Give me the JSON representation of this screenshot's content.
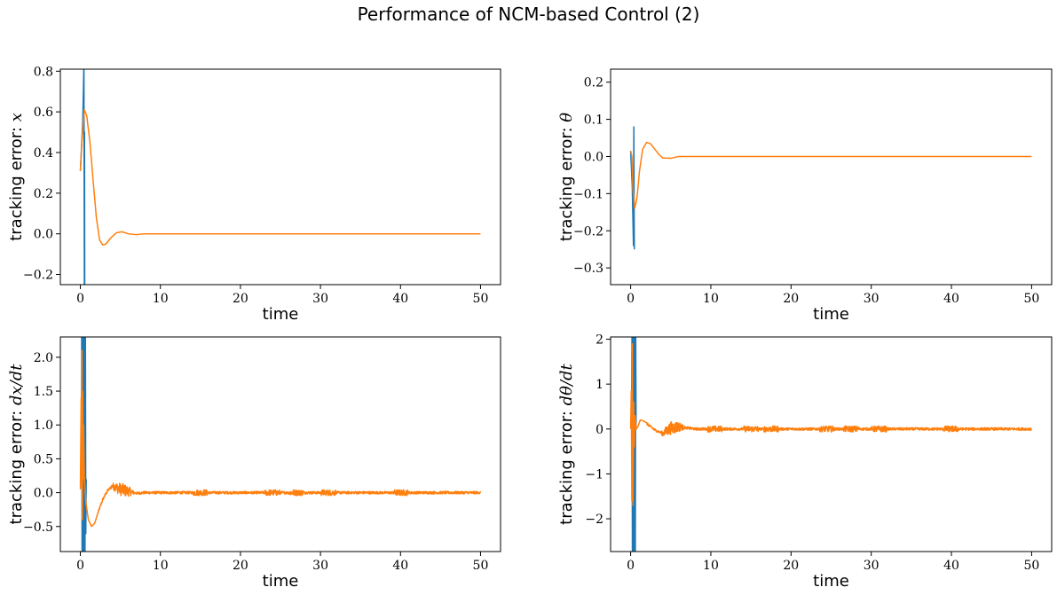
{
  "figure": {
    "title": "Performance of NCM-based Control (2)"
  },
  "colors": {
    "series_blue": "#1f77b4",
    "series_orange": "#ff7f0e"
  },
  "chart_data": [
    {
      "type": "line",
      "xlabel": "time",
      "ylabel_prefix": "tracking error: ",
      "ylabel_math": "x",
      "xlim": [
        -2.5,
        52.5
      ],
      "ylim": [
        -0.25,
        0.81
      ],
      "xticks": [
        0,
        10,
        20,
        30,
        40,
        50
      ],
      "yticks": [
        -0.2,
        0.0,
        0.2,
        0.4,
        0.6,
        0.8
      ],
      "ytick_labels": [
        "−0.2",
        "0.0",
        "0.2",
        "0.4",
        "0.6",
        "0.8"
      ],
      "series": [
        {
          "color": "#1f77b4",
          "x": [
            0.0,
            0.3,
            0.45,
            0.5,
            0.52,
            0.55
          ],
          "y": [
            0.31,
            0.55,
            0.85,
            -0.3,
            0.5,
            -0.3
          ]
        },
        {
          "color": "#ff7f0e",
          "x": [
            0.0,
            0.2,
            0.5,
            0.8,
            1.2,
            1.6,
            2.0,
            2.4,
            2.8,
            3.2,
            3.8,
            4.5,
            5.2,
            6.0,
            7.0,
            8.0,
            10,
            20,
            30,
            40,
            50
          ],
          "y": [
            0.31,
            0.45,
            0.61,
            0.58,
            0.45,
            0.26,
            0.08,
            -0.03,
            -0.055,
            -0.05,
            -0.02,
            0.005,
            0.01,
            0.0,
            -0.004,
            0.0,
            0.0,
            0.0,
            0.0,
            0.0,
            0.0
          ]
        }
      ]
    },
    {
      "type": "line",
      "xlabel": "time",
      "ylabel_prefix": "tracking error: ",
      "ylabel_math": "θ",
      "xlim": [
        -2.5,
        52.5
      ],
      "ylim": [
        -0.345,
        0.235
      ],
      "xticks": [
        0,
        10,
        20,
        30,
        40,
        50
      ],
      "yticks": [
        -0.3,
        -0.2,
        -0.1,
        0.0,
        0.1,
        0.2
      ],
      "ytick_labels": [
        "−0.3",
        "−0.2",
        "−0.1",
        "0.0",
        "0.1",
        "0.2"
      ],
      "series": [
        {
          "color": "#1f77b4",
          "x": [
            0.0,
            0.2,
            0.35,
            0.4,
            0.43,
            0.46
          ],
          "y": [
            0.015,
            -0.08,
            -0.24,
            0.08,
            -0.14,
            -0.25
          ]
        },
        {
          "color": "#ff7f0e",
          "x": [
            0.0,
            0.15,
            0.3,
            0.5,
            0.8,
            1.1,
            1.5,
            2.0,
            2.5,
            3.0,
            3.5,
            4.0,
            5.0,
            6.0,
            7.0,
            10,
            20,
            30,
            40,
            50
          ],
          "y": [
            0.015,
            0.0,
            -0.09,
            -0.14,
            -0.11,
            -0.04,
            0.02,
            0.038,
            0.034,
            0.02,
            0.006,
            -0.004,
            -0.005,
            0.0,
            0.0,
            0.0,
            0.0,
            0.0,
            0.0,
            0.0
          ]
        }
      ]
    },
    {
      "type": "line",
      "xlabel": "time",
      "ylabel_prefix": "tracking error: ",
      "ylabel_math": "dx/dt",
      "xlim": [
        -2.5,
        52.5
      ],
      "ylim": [
        -0.87,
        2.3
      ],
      "xticks": [
        0,
        10,
        20,
        30,
        40,
        50
      ],
      "yticks": [
        -0.5,
        0.0,
        0.5,
        1.0,
        1.5,
        2.0
      ],
      "ytick_labels": [
        "−0.5",
        "0.0",
        "0.5",
        "1.0",
        "1.5",
        "2.0"
      ],
      "series": [
        {
          "color": "#1f77b4",
          "x": [
            0.2,
            0.25,
            0.3,
            0.35,
            0.4,
            0.45,
            0.5,
            0.55,
            0.6,
            0.65
          ],
          "y": [
            0.3,
            2.35,
            -0.87,
            2.35,
            -0.87,
            2.35,
            -0.87,
            2.35,
            -0.6,
            0.2
          ]
        },
        {
          "color": "#ff7f0e",
          "x": [
            0.0,
            0.1,
            0.15,
            0.2,
            0.25,
            0.3,
            0.35,
            0.4,
            0.5,
            0.7,
            1.0,
            1.4,
            1.8,
            2.2,
            2.8,
            3.4,
            4.0,
            5.0,
            6.0,
            7.0,
            8.0,
            10,
            20,
            30,
            40,
            50
          ],
          "y": [
            0.05,
            1.4,
            0.1,
            2.1,
            -0.4,
            1.5,
            0.2,
            1.0,
            0.2,
            -0.15,
            -0.4,
            -0.5,
            -0.45,
            -0.3,
            -0.1,
            0.03,
            0.1,
            0.05,
            0.02,
            -0.01,
            0.0,
            0.0,
            0.0,
            0.0,
            0.0,
            0.0
          ]
        }
      ]
    },
    {
      "type": "line",
      "xlabel": "time",
      "ylabel_prefix": "tracking error: ",
      "ylabel_math": "dθ/dt",
      "xlim": [
        -2.5,
        52.5
      ],
      "ylim": [
        -2.73,
        2.05
      ],
      "xticks": [
        0,
        10,
        20,
        30,
        40,
        50
      ],
      "yticks": [
        -2,
        -1,
        0,
        1,
        2
      ],
      "ytick_labels": [
        "−2",
        "−1",
        "0",
        "1",
        "2"
      ],
      "series": [
        {
          "color": "#1f77b4",
          "x": [
            0.2,
            0.25,
            0.3,
            0.35,
            0.4,
            0.45,
            0.5,
            0.55,
            0.6
          ],
          "y": [
            0.2,
            2.05,
            -2.73,
            2.05,
            -2.73,
            2.05,
            -2.73,
            2.05,
            0.0
          ]
        },
        {
          "color": "#ff7f0e",
          "x": [
            0.0,
            0.08,
            0.15,
            0.22,
            0.3,
            0.38,
            0.45,
            0.55,
            0.7,
            0.9,
            1.2,
            1.6,
            2.0,
            2.5,
            3.0,
            4.0,
            5.0,
            6.0,
            8.0,
            10,
            20,
            30,
            40,
            50
          ],
          "y": [
            0.0,
            0.85,
            -1.6,
            1.9,
            -1.7,
            0.6,
            -0.4,
            0.3,
            0.0,
            0.05,
            0.2,
            0.18,
            0.12,
            0.05,
            -0.02,
            -0.1,
            0.02,
            0.05,
            0.0,
            0.0,
            0.0,
            0.0,
            0.0,
            0.0
          ]
        }
      ]
    }
  ]
}
